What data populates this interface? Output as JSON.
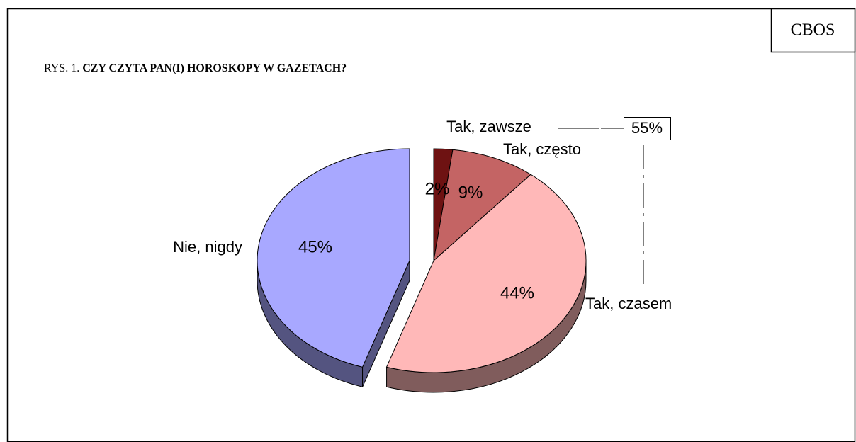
{
  "chart_data": {
    "type": "pie",
    "source": "CBOS",
    "figure_label": "RYS. 1.",
    "title": "CZY CZYTA PAN(I) HOROSKOPY W GAZETACH?",
    "categories": [
      "Tak, zawsze",
      "Tak, często",
      "Tak, czasem",
      "Nie, nigdy"
    ],
    "values": [
      2,
      9,
      44,
      45
    ],
    "value_labels": [
      "2%",
      "9%",
      "44%",
      "45%"
    ],
    "colors": [
      "#6e1212",
      "#c46464",
      "#ffb8b8",
      "#a8a8ff"
    ],
    "annotation": "55%"
  }
}
